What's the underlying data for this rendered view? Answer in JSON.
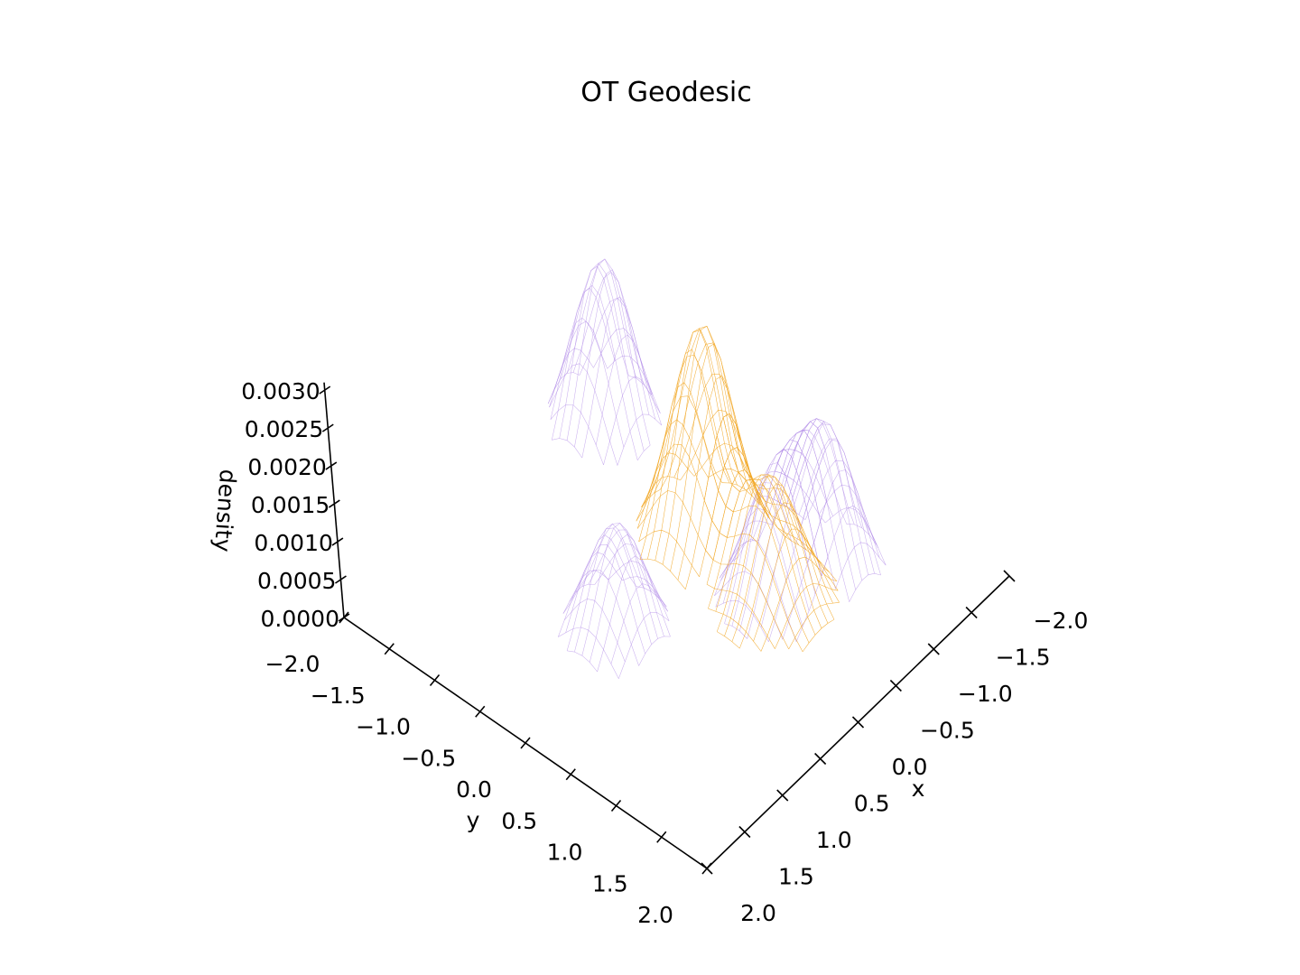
{
  "chart_data": {
    "type": "surface3d",
    "title": "OT Geodesic",
    "xlabel": "x",
    "ylabel": "y",
    "zlabel": "density",
    "xlim": [
      -2.0,
      2.0
    ],
    "ylim": [
      -2.0,
      2.0
    ],
    "zlim": [
      0.0,
      0.0031
    ],
    "x_ticks": [
      "−2.0",
      "−1.5",
      "−1.0",
      "−0.5",
      "0.0",
      "0.5",
      "1.0",
      "1.5",
      "2.0"
    ],
    "y_ticks": [
      "−2.0",
      "−1.5",
      "−1.0",
      "−0.5",
      "0.0",
      "0.5",
      "1.0",
      "1.5",
      "2.0"
    ],
    "z_ticks": [
      "0.0000",
      "0.0005",
      "0.0010",
      "0.0015",
      "0.0020",
      "0.0025",
      "0.0030"
    ],
    "x_tick_values": [
      -2.0,
      -1.5,
      -1.0,
      -0.5,
      0.0,
      0.5,
      1.0,
      1.5,
      2.0
    ],
    "y_tick_values": [
      -2.0,
      -1.5,
      -1.0,
      -0.5,
      0.0,
      0.5,
      1.0,
      1.5,
      2.0
    ],
    "z_tick_values": [
      0.0,
      0.0005,
      0.001,
      0.0015,
      0.002,
      0.0025,
      0.003
    ],
    "grid": false,
    "series": [
      {
        "style": "wireframe",
        "color": "#b48ee8",
        "peaks": [
          {
            "x": -0.7,
            "y": -1.4,
            "height": 0.00265
          },
          {
            "x": -0.8,
            "y": 1.0,
            "height": 0.00215
          },
          {
            "x": 0.8,
            "y": 0.0,
            "height": 0.00175
          },
          {
            "x": -0.3,
            "y": 0.8,
            "height": 0.0018
          }
        ]
      },
      {
        "style": "surface",
        "color": "#f2a726",
        "peaks": [
          {
            "x": -0.45,
            "y": -0.1,
            "height": 0.0031
          },
          {
            "x": -0.4,
            "y": 0.7,
            "height": 0.00175
          }
        ]
      }
    ]
  }
}
